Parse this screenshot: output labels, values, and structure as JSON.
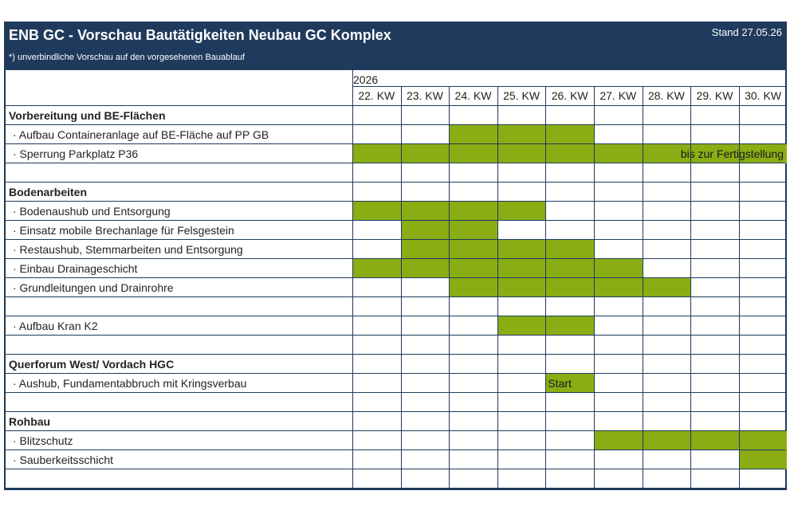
{
  "title": "ENB GC - Vorschau Bautätigkeiten Neubau GC Komplex",
  "stand": "Stand 27.05.26",
  "note": "*) unverbindliche Vorschau auf den vorgesehenen Bauablauf",
  "year": "2026",
  "weeks": [
    "22. KW",
    "23. KW",
    "24. KW",
    "25. KW",
    "26. KW",
    "27. KW",
    "28. KW",
    "29. KW",
    "30. KW"
  ],
  "colors": {
    "header": "#1f3a5c",
    "fill": "#8aad14"
  },
  "rows": [
    {
      "label": "Vorbereitung und BE-Flächen",
      "type": "section",
      "fill": []
    },
    {
      "label": "· Aufbau Containeranlage auf BE-Fläche auf PP GB",
      "type": "item",
      "fill": [
        2,
        3,
        4
      ]
    },
    {
      "label": "· Sperrung Parkplatz P36",
      "type": "item",
      "fill": [
        0,
        1,
        2,
        3,
        4,
        5,
        6,
        7,
        8
      ],
      "note": "bis zur Fertigstellung"
    },
    {
      "label": "",
      "type": "blank",
      "fill": []
    },
    {
      "label": "Bodenarbeiten",
      "type": "section",
      "fill": []
    },
    {
      "label": "· Bodenaushub und Entsorgung",
      "type": "item",
      "fill": [
        0,
        1,
        2,
        3
      ]
    },
    {
      "label": "· Einsatz mobile Brechanlage für Felsgestein",
      "type": "item",
      "fill": [
        1,
        2
      ]
    },
    {
      "label": "· Restaushub, Stemmarbeiten und Entsorgung",
      "type": "item",
      "fill": [
        1,
        2,
        3,
        4
      ]
    },
    {
      "label": "· Einbau Drainageschicht",
      "type": "item",
      "fill": [
        0,
        1,
        2,
        3,
        4,
        5
      ]
    },
    {
      "label": "· Grundleitungen und Drainrohre",
      "type": "item",
      "fill": [
        2,
        3,
        4,
        5,
        6
      ]
    },
    {
      "label": "",
      "type": "blank",
      "fill": []
    },
    {
      "label": "· Aufbau Kran K2",
      "type": "item",
      "fill": [
        3,
        4
      ]
    },
    {
      "label": "",
      "type": "blank",
      "fill": []
    },
    {
      "label": "Querforum West/ Vordach HGC",
      "type": "section",
      "fill": []
    },
    {
      "label": "· Aushub, Fundamentabbruch mit Kringsverbau",
      "type": "item",
      "fill": [
        4
      ],
      "cell_text": "Start"
    },
    {
      "label": "",
      "type": "blank",
      "fill": []
    },
    {
      "label": "Rohbau",
      "type": "section",
      "fill": []
    },
    {
      "label": "· Blitzschutz",
      "type": "item",
      "fill": [
        5,
        6,
        7,
        8
      ]
    },
    {
      "label": "· Sauberkeitsschicht",
      "type": "item",
      "fill": [
        8
      ]
    },
    {
      "label": "",
      "type": "blank",
      "fill": []
    }
  ]
}
